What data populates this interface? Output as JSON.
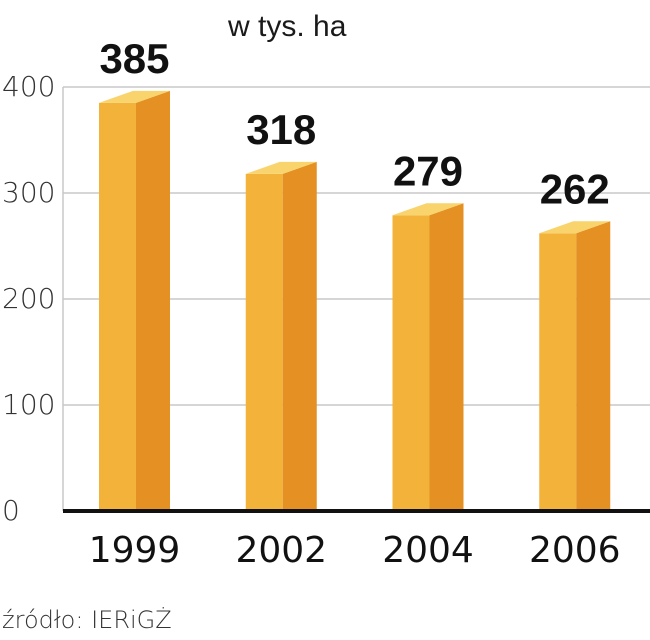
{
  "chart_data": {
    "type": "bar",
    "unit_label": "w tys. ha",
    "categories": [
      "1999",
      "2002",
      "2004",
      "2006"
    ],
    "values": [
      385,
      318,
      279,
      262
    ],
    "data_labels": [
      "385",
      "318",
      "279",
      "262"
    ],
    "yticks": [
      "0",
      "100",
      "200",
      "300",
      "400"
    ],
    "ylim": [
      0,
      400
    ],
    "grid": true,
    "source": "źródło: IERiGŻ",
    "colors": {
      "bar_front": "#f3b23a",
      "bar_side": "#e49022",
      "bar_top": "#f9d36b",
      "grid": "#c8c8c8",
      "axis": "#111111"
    }
  }
}
